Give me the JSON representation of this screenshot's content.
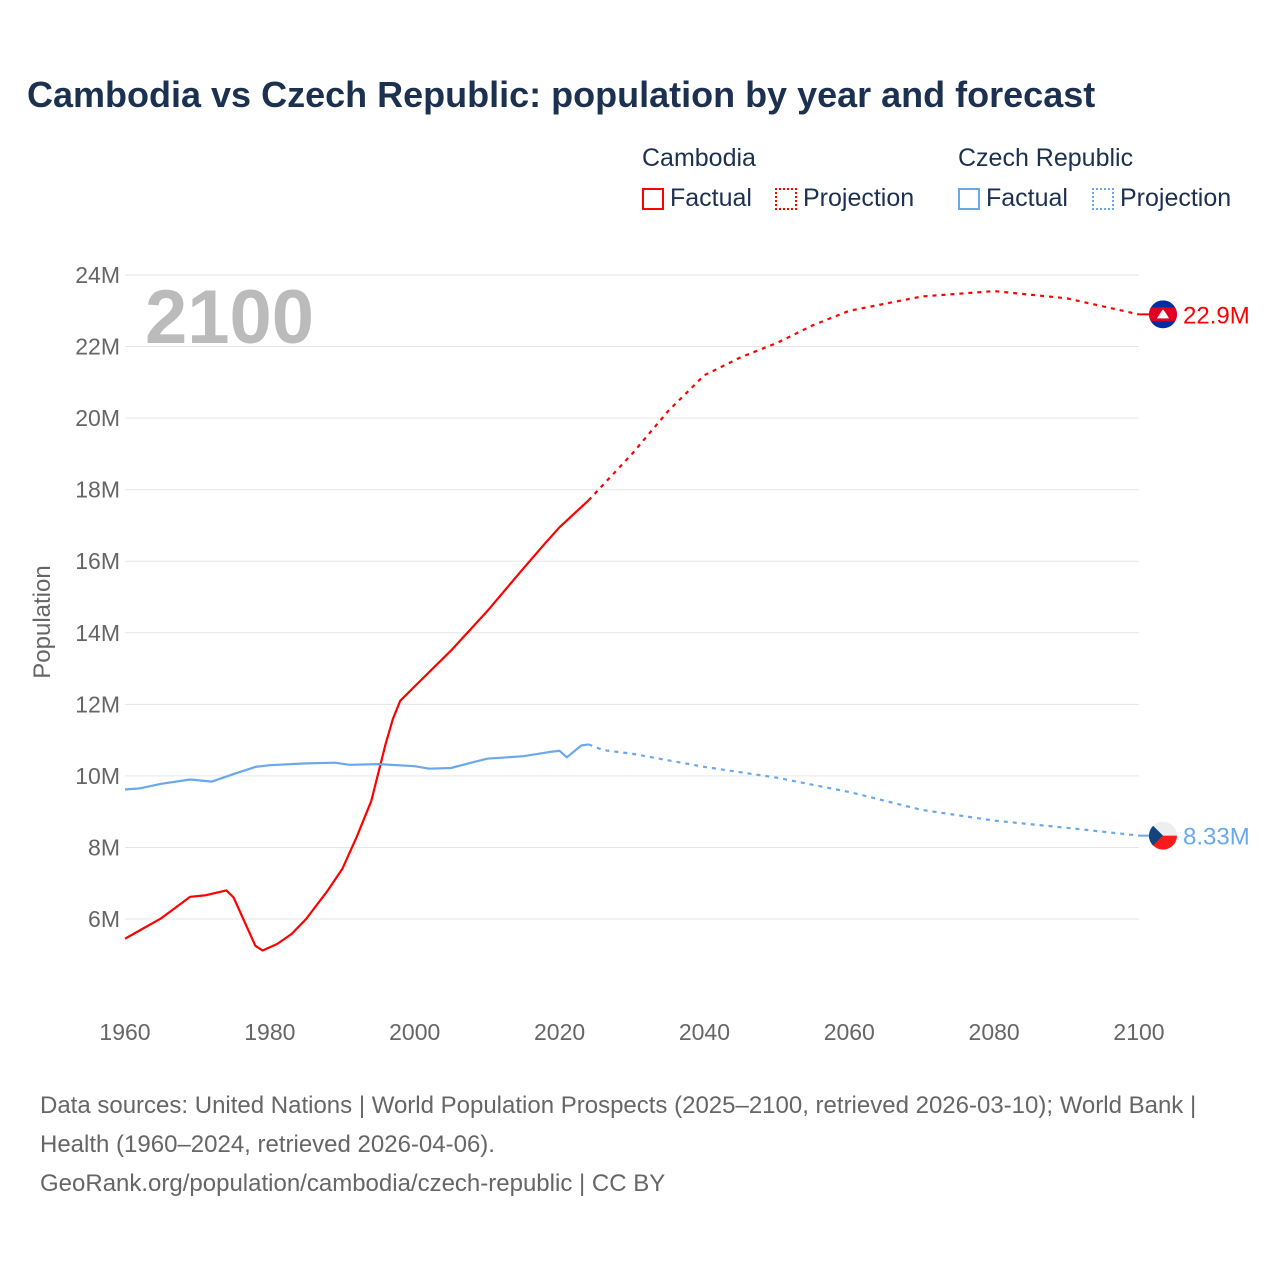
{
  "title": "Cambodia vs Czech Republic: population by year and forecast",
  "legend": {
    "groups": [
      {
        "name": "Cambodia",
        "factual": "Factual",
        "projection": "Projection",
        "color": "#ff0000"
      },
      {
        "name": "Czech Republic",
        "factual": "Factual",
        "projection": "Projection",
        "color": "#6aa8ec"
      }
    ]
  },
  "year_label": "2100",
  "footer": {
    "sources": "Data sources: United Nations | World Population Prospects (2025–2100, retrieved 2026-03-10); World Bank | Health (1960–2024, retrieved 2026-04-06).",
    "link": "GeoRank.org/population/cambodia/czech-republic | CC BY"
  },
  "chart_data": {
    "type": "line",
    "title": "Cambodia vs Czech Republic: population by year and forecast",
    "xlabel": "",
    "ylabel": "Population",
    "xlim": [
      1960,
      2100
    ],
    "ylim": [
      4,
      24
    ],
    "x_ticks": [
      "1960",
      "1980",
      "2000",
      "2020",
      "2040",
      "2060",
      "2080",
      "2100"
    ],
    "y_ticks": [
      "6M",
      "8M",
      "10M",
      "12M",
      "14M",
      "16M",
      "18M",
      "20M",
      "22M",
      "24M"
    ],
    "grid": true,
    "series": [
      {
        "name": "Cambodia",
        "color": "#ff0000",
        "end_label": "22.9M",
        "factual": [
          [
            1960,
            5.45
          ],
          [
            1965,
            6.02
          ],
          [
            1969,
            6.62
          ],
          [
            1971,
            6.66
          ],
          [
            1974,
            6.8
          ],
          [
            1975,
            6.6
          ],
          [
            1978,
            5.25
          ],
          [
            1979,
            5.12
          ],
          [
            1981,
            5.3
          ],
          [
            1983,
            5.58
          ],
          [
            1985,
            6.0
          ],
          [
            1988,
            6.8
          ],
          [
            1990,
            7.4
          ],
          [
            1992,
            8.3
          ],
          [
            1994,
            9.3
          ],
          [
            1996,
            10.9
          ],
          [
            1997,
            11.6
          ],
          [
            1998,
            12.1
          ],
          [
            2000,
            12.5
          ],
          [
            2005,
            13.5
          ],
          [
            2010,
            14.6
          ],
          [
            2015,
            15.8
          ],
          [
            2018,
            16.5
          ],
          [
            2020,
            16.95
          ],
          [
            2024,
            17.7
          ]
        ],
        "projection": [
          [
            2024,
            17.7
          ],
          [
            2030,
            19.0
          ],
          [
            2035,
            20.2
          ],
          [
            2040,
            21.2
          ],
          [
            2045,
            21.7
          ],
          [
            2050,
            22.1
          ],
          [
            2055,
            22.6
          ],
          [
            2060,
            23.0
          ],
          [
            2070,
            23.4
          ],
          [
            2080,
            23.55
          ],
          [
            2090,
            23.35
          ],
          [
            2100,
            22.9
          ]
        ]
      },
      {
        "name": "Czech Republic",
        "color": "#6aa8ec",
        "end_label": "8.33M",
        "factual": [
          [
            1960,
            9.62
          ],
          [
            1962,
            9.65
          ],
          [
            1965,
            9.78
          ],
          [
            1969,
            9.9
          ],
          [
            1972,
            9.84
          ],
          [
            1975,
            10.05
          ],
          [
            1978,
            10.25
          ],
          [
            1980,
            10.3
          ],
          [
            1985,
            10.35
          ],
          [
            1989,
            10.37
          ],
          [
            1991,
            10.31
          ],
          [
            1995,
            10.33
          ],
          [
            2000,
            10.27
          ],
          [
            2002,
            10.2
          ],
          [
            2005,
            10.22
          ],
          [
            2008,
            10.38
          ],
          [
            2010,
            10.48
          ],
          [
            2015,
            10.55
          ],
          [
            2019,
            10.68
          ],
          [
            2020,
            10.7
          ],
          [
            2021,
            10.52
          ],
          [
            2023,
            10.85
          ],
          [
            2024,
            10.88
          ]
        ],
        "projection": [
          [
            2024,
            10.88
          ],
          [
            2026,
            10.72
          ],
          [
            2030,
            10.62
          ],
          [
            2040,
            10.25
          ],
          [
            2050,
            9.95
          ],
          [
            2060,
            9.55
          ],
          [
            2070,
            9.05
          ],
          [
            2080,
            8.75
          ],
          [
            2090,
            8.55
          ],
          [
            2100,
            8.33
          ]
        ]
      }
    ]
  }
}
